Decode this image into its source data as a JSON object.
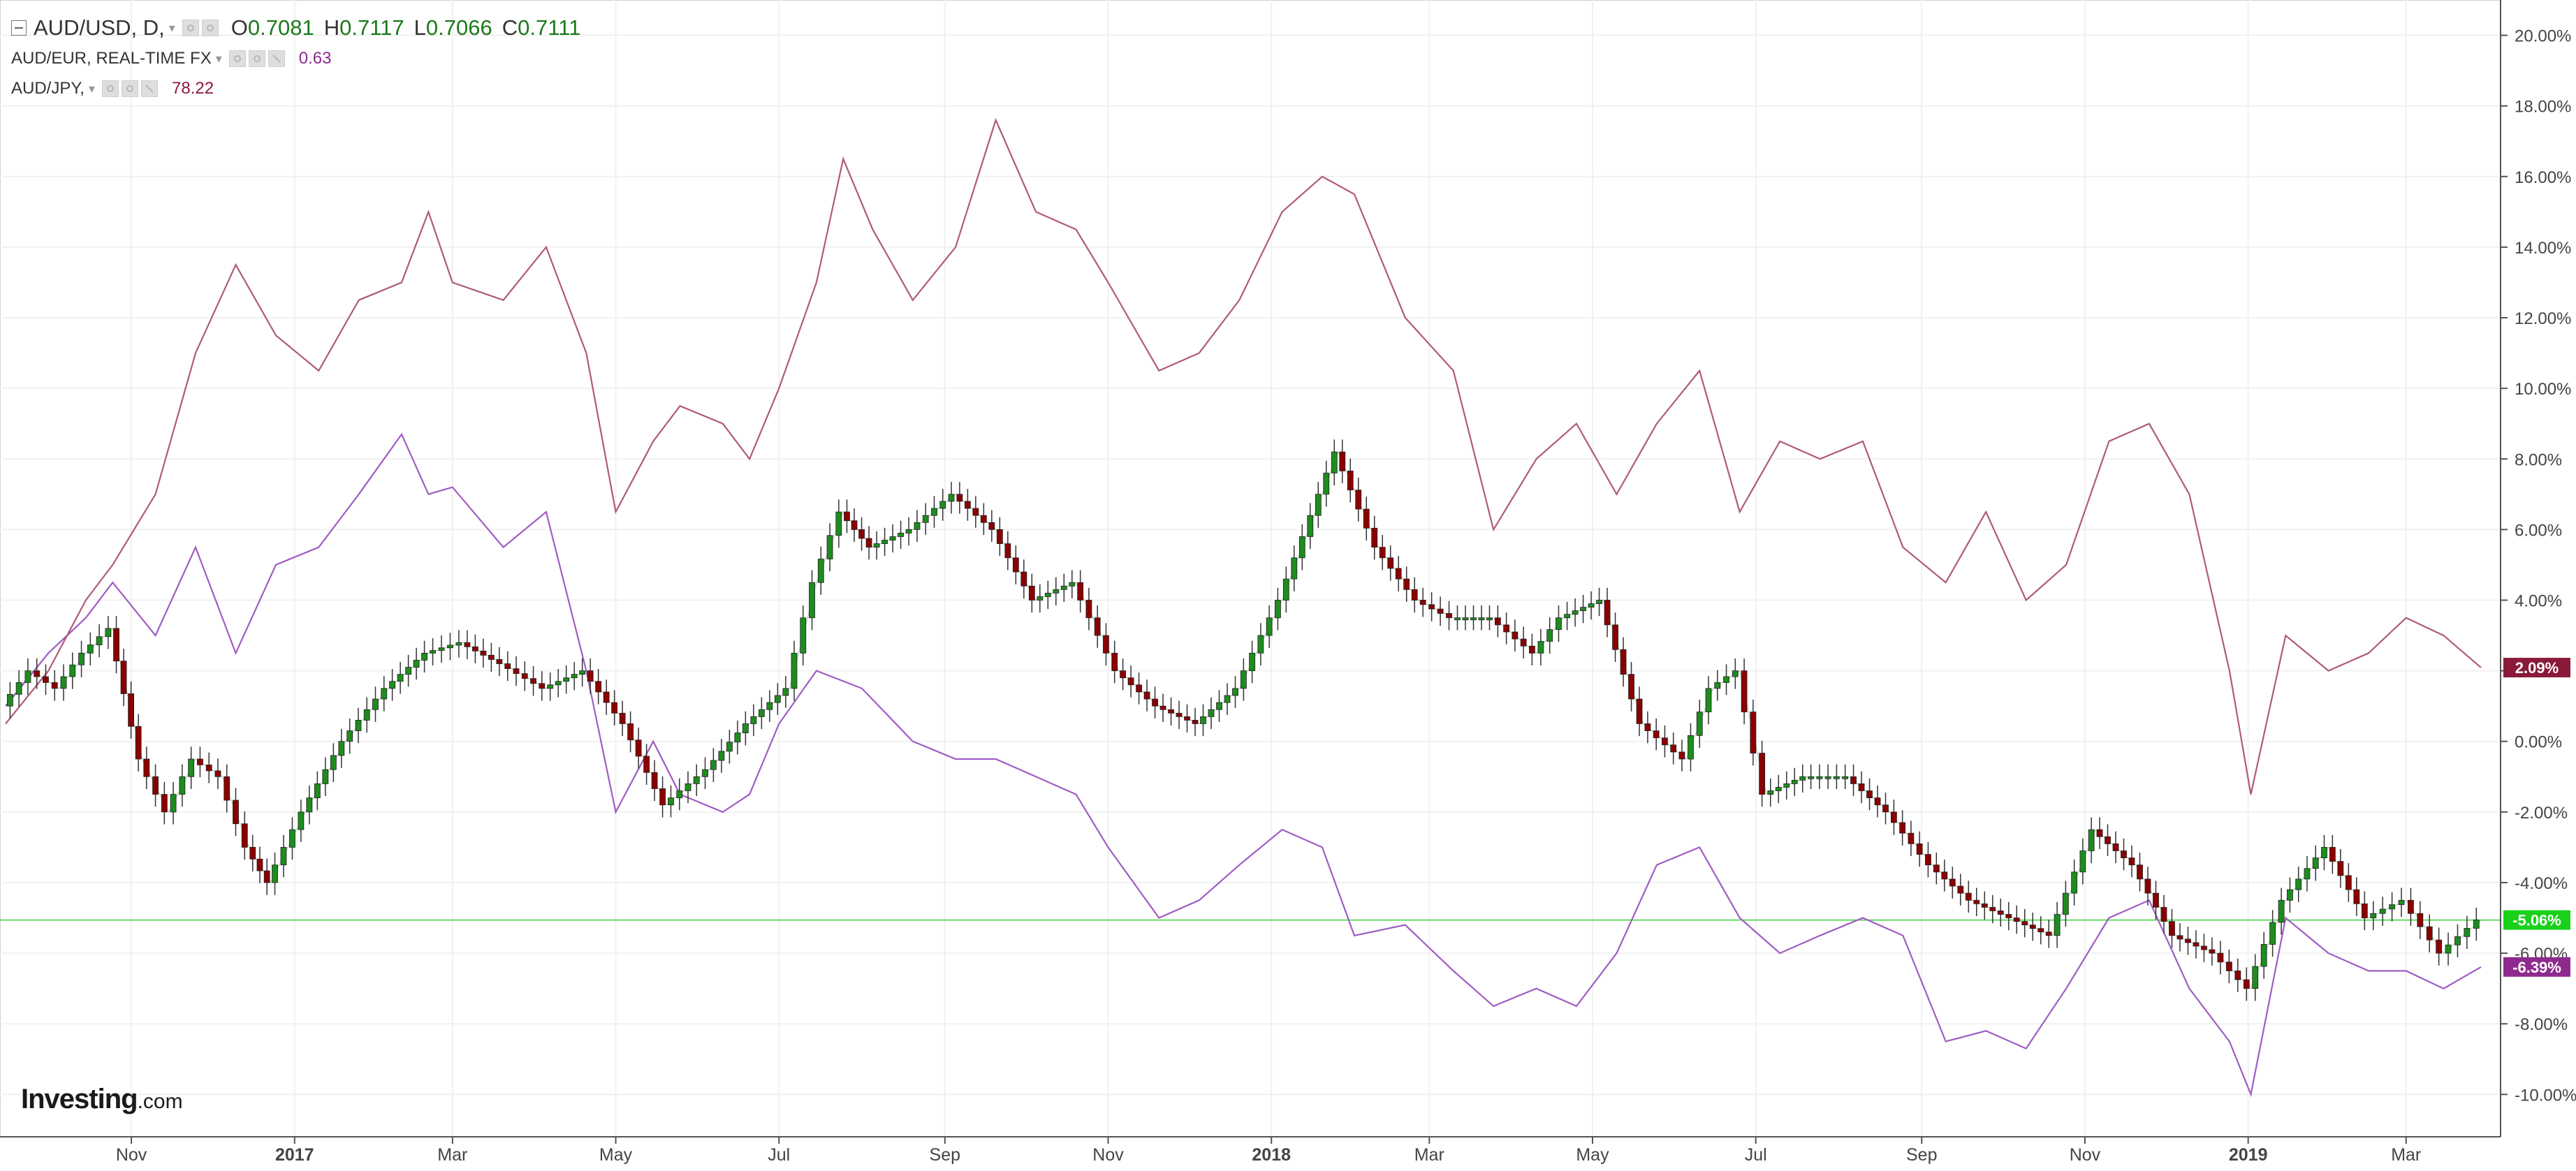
{
  "header": {
    "main_symbol": "AUD/USD, D,",
    "ohlc": [
      {
        "label": "O",
        "value": "0.7081"
      },
      {
        "label": "H",
        "value": "0.7117"
      },
      {
        "label": "L",
        "value": "0.7066"
      },
      {
        "label": "C",
        "value": "0.7111"
      }
    ],
    "compare": [
      {
        "name": "AUD/EUR, REAL-TIME FX",
        "value": "0.63",
        "color": "#8e2a8e"
      },
      {
        "name": "AUD/JPY,",
        "value": "78.22",
        "color": "#8b1a3a"
      }
    ]
  },
  "brand": {
    "name": "Investing",
    "suffix": ".com"
  },
  "chart_data": {
    "type": "line",
    "candles_up_color": "#1e8c1e",
    "candles_down_color": "#8b0000",
    "y_axis": {
      "unit": "percent",
      "ylim": [
        -11.2,
        21.0
      ],
      "ticks": [
        "20.00%",
        "18.00%",
        "16.00%",
        "14.00%",
        "12.00%",
        "10.00%",
        "8.00%",
        "6.00%",
        "4.00%",
        "2.00%",
        "0.00%",
        "-2.00%",
        "-4.00%",
        "-6.00%",
        "-8.00%",
        "-10.00%"
      ],
      "tick_values": [
        20,
        18,
        16,
        14,
        12,
        10,
        8,
        6,
        4,
        2,
        0,
        -2,
        -4,
        -6,
        -8,
        -10
      ]
    },
    "x_axis": {
      "range": [
        "2016-09-15",
        "2019-03-29"
      ],
      "ticks": [
        {
          "label": "Nov",
          "date": "2016-11-01",
          "bold": false
        },
        {
          "label": "2017",
          "date": "2017-01-01",
          "bold": true
        },
        {
          "label": "Mar",
          "date": "2017-03-01",
          "bold": false
        },
        {
          "label": "May",
          "date": "2017-05-01",
          "bold": false
        },
        {
          "label": "Jul",
          "date": "2017-07-01",
          "bold": false
        },
        {
          "label": "Sep",
          "date": "2017-09-01",
          "bold": false
        },
        {
          "label": "Nov",
          "date": "2017-11-01",
          "bold": false
        },
        {
          "label": "2018",
          "date": "2018-01-01",
          "bold": true
        },
        {
          "label": "Mar",
          "date": "2018-03-01",
          "bold": false
        },
        {
          "label": "May",
          "date": "2018-05-01",
          "bold": false
        },
        {
          "label": "Jul",
          "date": "2018-07-01",
          "bold": false
        },
        {
          "label": "Sep",
          "date": "2018-09-01",
          "bold": false
        },
        {
          "label": "Nov",
          "date": "2018-11-01",
          "bold": false
        },
        {
          "label": "2019",
          "date": "2019-01-01",
          "bold": true
        },
        {
          "label": "Mar",
          "date": "2019-03-01",
          "bold": false
        }
      ]
    },
    "horizontal_line": {
      "value": -5.06,
      "color": "#66dd66"
    },
    "last_value_labels": [
      {
        "text": "2.09%",
        "value": 2.09,
        "color": "#8b1a3a"
      },
      {
        "text": "-5.06%",
        "value": -5.06,
        "color": "#19d11a"
      },
      {
        "text": "-6.39%",
        "value": -6.39,
        "color": "#8e2a8e"
      }
    ],
    "series": [
      {
        "name": "AUD/USD",
        "style": "candles",
        "color": "#2b7a2b",
        "x": [
          "2016-09-15",
          "2016-09-25",
          "2016-10-05",
          "2016-10-15",
          "2016-10-25",
          "2016-11-05",
          "2016-11-15",
          "2016-11-25",
          "2016-12-05",
          "2016-12-15",
          "2016-12-23",
          "2017-01-05",
          "2017-01-20",
          "2017-02-05",
          "2017-02-20",
          "2017-03-05",
          "2017-03-20",
          "2017-04-05",
          "2017-04-20",
          "2017-05-05",
          "2017-05-20",
          "2017-06-05",
          "2017-06-20",
          "2017-07-05",
          "2017-07-15",
          "2017-07-25",
          "2017-08-05",
          "2017-08-20",
          "2017-09-05",
          "2017-09-20",
          "2017-10-05",
          "2017-10-20",
          "2017-11-05",
          "2017-11-20",
          "2017-12-05",
          "2017-12-20",
          "2018-01-05",
          "2018-01-20",
          "2018-01-26",
          "2018-02-10",
          "2018-02-25",
          "2018-03-10",
          "2018-03-25",
          "2018-04-10",
          "2018-04-20",
          "2018-05-05",
          "2018-05-20",
          "2018-06-05",
          "2018-06-15",
          "2018-06-25",
          "2018-07-05",
          "2018-07-20",
          "2018-08-05",
          "2018-08-20",
          "2018-09-05",
          "2018-09-20",
          "2018-10-05",
          "2018-10-20",
          "2018-11-05",
          "2018-11-20",
          "2018-12-05",
          "2018-12-20",
          "2019-01-02",
          "2019-01-15",
          "2019-01-31",
          "2019-02-15",
          "2019-03-01",
          "2019-03-15",
          "2019-03-29"
        ],
        "values": [
          1.0,
          2.0,
          1.5,
          2.5,
          3.2,
          -0.5,
          -2.0,
          -0.5,
          -1.0,
          -3.0,
          -4.0,
          -2.0,
          0.0,
          1.5,
          2.5,
          2.8,
          2.2,
          1.5,
          2.0,
          0.5,
          -1.8,
          -0.8,
          0.5,
          1.5,
          4.5,
          6.5,
          5.5,
          6.0,
          7.0,
          6.0,
          4.0,
          4.5,
          2.0,
          1.0,
          0.5,
          1.5,
          4.0,
          7.0,
          8.2,
          5.5,
          4.0,
          3.5,
          3.5,
          2.5,
          3.5,
          4.0,
          0.5,
          -0.5,
          1.5,
          2.0,
          -1.5,
          -1.0,
          -1.0,
          -2.0,
          -3.5,
          -4.5,
          -5.0,
          -5.5,
          -2.5,
          -3.5,
          -5.5,
          -6.0,
          -7.0,
          -4.5,
          -3.0,
          -5.0,
          -4.5,
          -6.0,
          -5.06
        ]
      },
      {
        "name": "AUD/EUR",
        "style": "line",
        "color": "#a05cc4",
        "x": [
          "2016-09-15",
          "2016-10-01",
          "2016-10-15",
          "2016-10-25",
          "2016-11-10",
          "2016-11-25",
          "2016-12-10",
          "2016-12-25",
          "2017-01-10",
          "2017-01-25",
          "2017-02-10",
          "2017-02-20",
          "2017-03-01",
          "2017-03-20",
          "2017-04-05",
          "2017-04-20",
          "2017-05-01",
          "2017-05-15",
          "2017-05-25",
          "2017-06-10",
          "2017-06-20",
          "2017-07-01",
          "2017-07-15",
          "2017-08-01",
          "2017-08-20",
          "2017-09-05",
          "2017-09-20",
          "2017-10-05",
          "2017-10-20",
          "2017-11-01",
          "2017-11-20",
          "2017-12-05",
          "2017-12-20",
          "2018-01-05",
          "2018-01-20",
          "2018-02-01",
          "2018-02-20",
          "2018-03-10",
          "2018-03-25",
          "2018-04-10",
          "2018-04-25",
          "2018-05-10",
          "2018-05-25",
          "2018-06-10",
          "2018-06-25",
          "2018-07-10",
          "2018-07-25",
          "2018-08-10",
          "2018-08-25",
          "2018-09-10",
          "2018-09-25",
          "2018-10-10",
          "2018-10-25",
          "2018-11-10",
          "2018-11-25",
          "2018-12-10",
          "2018-12-25",
          "2019-01-02",
          "2019-01-15",
          "2019-01-31",
          "2019-02-15",
          "2019-03-01",
          "2019-03-15",
          "2019-03-29"
        ],
        "values": [
          1.0,
          2.5,
          3.5,
          4.5,
          3.0,
          5.5,
          2.5,
          5.0,
          5.5,
          7.0,
          8.7,
          7.0,
          7.2,
          5.5,
          6.5,
          2.0,
          -2.0,
          0.0,
          -1.5,
          -2.0,
          -1.5,
          0.5,
          2.0,
          1.5,
          0.0,
          -0.5,
          -0.5,
          -1.0,
          -1.5,
          -3.0,
          -5.0,
          -4.5,
          -3.5,
          -2.5,
          -3.0,
          -5.5,
          -5.2,
          -6.5,
          -7.5,
          -7.0,
          -7.5,
          -6.0,
          -3.5,
          -3.0,
          -5.0,
          -6.0,
          -5.5,
          -5.0,
          -5.5,
          -8.5,
          -8.2,
          -8.7,
          -7.0,
          -5.0,
          -4.5,
          -7.0,
          -8.5,
          -10.0,
          -5.0,
          -6.0,
          -6.5,
          -6.5,
          -7.0,
          -6.39
        ]
      },
      {
        "name": "AUD/JPY",
        "style": "line",
        "color": "#b05a78",
        "x": [
          "2016-09-15",
          "2016-10-01",
          "2016-10-15",
          "2016-10-25",
          "2016-11-10",
          "2016-11-25",
          "2016-12-10",
          "2016-12-25",
          "2017-01-10",
          "2017-01-25",
          "2017-02-10",
          "2017-02-20",
          "2017-03-01",
          "2017-03-20",
          "2017-04-05",
          "2017-04-20",
          "2017-05-01",
          "2017-05-15",
          "2017-05-25",
          "2017-06-10",
          "2017-06-20",
          "2017-07-01",
          "2017-07-15",
          "2017-07-25",
          "2017-08-05",
          "2017-08-20",
          "2017-09-05",
          "2017-09-20",
          "2017-10-05",
          "2017-10-20",
          "2017-11-01",
          "2017-11-20",
          "2017-12-05",
          "2017-12-20",
          "2018-01-05",
          "2018-01-20",
          "2018-02-01",
          "2018-02-20",
          "2018-03-10",
          "2018-03-25",
          "2018-04-10",
          "2018-04-25",
          "2018-05-10",
          "2018-05-25",
          "2018-06-10",
          "2018-06-25",
          "2018-07-10",
          "2018-07-25",
          "2018-08-10",
          "2018-08-25",
          "2018-09-10",
          "2018-09-25",
          "2018-10-10",
          "2018-10-25",
          "2018-11-10",
          "2018-11-25",
          "2018-12-10",
          "2018-12-25",
          "2019-01-02",
          "2019-01-15",
          "2019-01-31",
          "2019-02-15",
          "2019-03-01",
          "2019-03-15",
          "2019-03-29"
        ],
        "values": [
          0.5,
          2.0,
          4.0,
          5.0,
          7.0,
          11.0,
          13.5,
          11.5,
          10.5,
          12.5,
          13.0,
          15.0,
          13.0,
          12.5,
          14.0,
          11.0,
          6.5,
          8.5,
          9.5,
          9.0,
          8.0,
          10.0,
          13.0,
          16.5,
          14.5,
          12.5,
          14.0,
          17.6,
          15.0,
          14.5,
          13.0,
          10.5,
          11.0,
          12.5,
          15.0,
          16.0,
          15.5,
          12.0,
          10.5,
          6.0,
          8.0,
          9.0,
          7.0,
          9.0,
          10.5,
          6.5,
          8.5,
          8.0,
          8.5,
          5.5,
          4.5,
          6.5,
          4.0,
          5.0,
          8.5,
          9.0,
          7.0,
          2.0,
          -1.5,
          3.0,
          2.0,
          2.5,
          3.5,
          3.0,
          2.09
        ]
      }
    ]
  }
}
